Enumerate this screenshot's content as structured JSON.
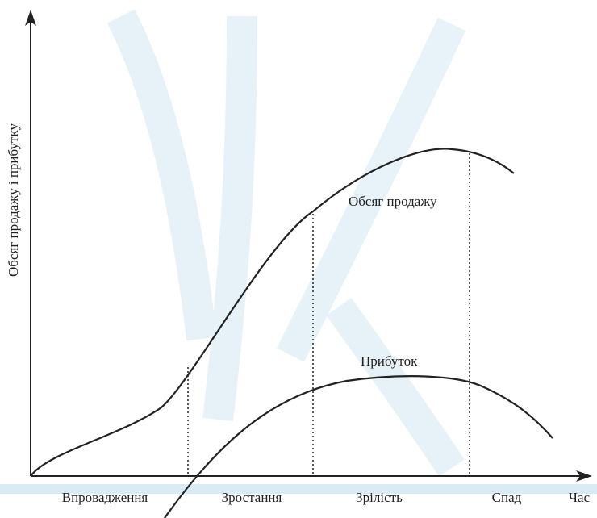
{
  "y_axis_label": "Обсяг продажу і прибутку",
  "x_axis_label": "Час",
  "curves": [
    {
      "label": "Обсяг продажу"
    },
    {
      "label": "Прибуток"
    }
  ],
  "stages": [
    "Впровадження",
    "Зростання",
    "Зрілість",
    "Спад"
  ]
}
